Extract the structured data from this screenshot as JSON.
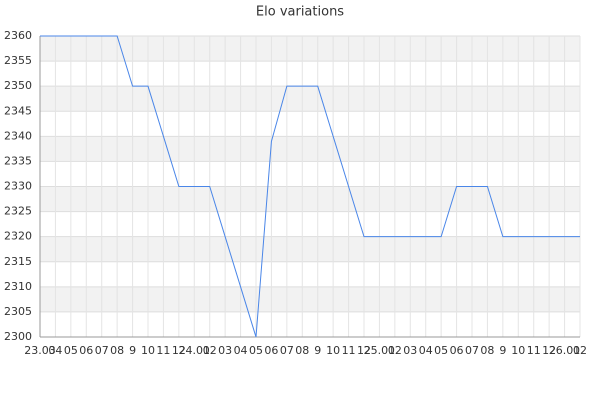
{
  "chart_data": {
    "type": "line",
    "title": "Elo variations",
    "categories": [
      "23.03",
      "04",
      "05",
      "06",
      "07",
      "08",
      "9",
      "10",
      "11",
      "12",
      "24.01",
      "02",
      "03",
      "04",
      "05",
      "06",
      "07",
      "08",
      "9",
      "10",
      "11",
      "12",
      "25.01",
      "02",
      "03",
      "04",
      "05",
      "06",
      "07",
      "08",
      "9",
      "10",
      "11",
      "12",
      "26.01",
      "02"
    ],
    "series": [
      {
        "name": "Elo",
        "color": "#4a86e8",
        "values": [
          2360,
          2360,
          2360,
          2360,
          2360,
          2360,
          2350,
          2350,
          2340,
          2330,
          2330,
          2330,
          2320,
          2310,
          2300,
          2339,
          2350,
          2350,
          2350,
          2340,
          2330,
          2320,
          2320,
          2320,
          2320,
          2320,
          2320,
          2330,
          2330,
          2330,
          2320,
          2320,
          2320,
          2320,
          2320,
          2320
        ]
      }
    ],
    "ylim": [
      2300,
      2360
    ],
    "yticks": [
      2300,
      2305,
      2310,
      2315,
      2320,
      2325,
      2330,
      2335,
      2340,
      2345,
      2350,
      2355,
      2360
    ],
    "grid": true
  }
}
